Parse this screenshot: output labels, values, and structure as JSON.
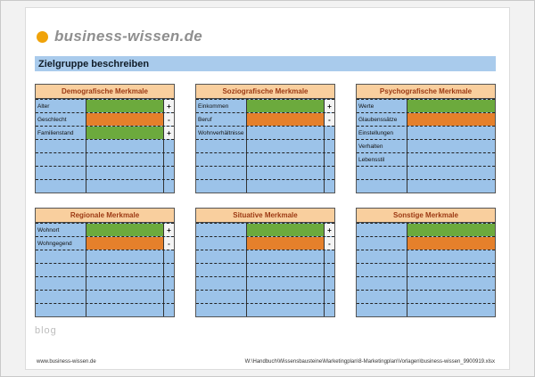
{
  "brand": {
    "name": "business-wissen.de"
  },
  "header": {
    "title": "Zielgruppe beschreiben"
  },
  "watermark": {
    "blog": "blog"
  },
  "footer": {
    "left": "www.business-wissen.de",
    "right": "W:\\Handbuch\\Wissensbausteine\\Marketingplan\\8-Marketingplan\\Vorlagen\\business-wissen_9900919.xlsx"
  },
  "colors": {
    "green": "#6caa3d",
    "orange": "#e5802b",
    "blue": "#9cc3e9",
    "header_bg": "#f9cf9e",
    "header_text": "#9c3913",
    "title_bar": "#a9cbec",
    "logo_dot": "#f0a30a"
  },
  "panels": [
    {
      "title": "Demografische Merkmale",
      "has_sign_col": true,
      "rows": [
        {
          "label": "Alter",
          "value_color": "green",
          "sign": "+"
        },
        {
          "label": "Geschlecht",
          "value_color": "orange",
          "sign": "-"
        },
        {
          "label": "Familienstand",
          "value_color": "green",
          "sign": "+"
        },
        {
          "label": "",
          "value_color": "blue",
          "sign": ""
        },
        {
          "label": "",
          "value_color": "blue",
          "sign": ""
        },
        {
          "label": "",
          "value_color": "blue",
          "sign": ""
        },
        {
          "label": "",
          "value_color": "blue",
          "sign": ""
        }
      ]
    },
    {
      "title": "Soziografische Merkmale",
      "has_sign_col": true,
      "rows": [
        {
          "label": "Einkommen",
          "value_color": "green",
          "sign": "+"
        },
        {
          "label": "Beruf",
          "value_color": "orange",
          "sign": "-"
        },
        {
          "label": "Wohnverhältnisse",
          "value_color": "blue",
          "sign": ""
        },
        {
          "label": "",
          "value_color": "blue",
          "sign": ""
        },
        {
          "label": "",
          "value_color": "blue",
          "sign": ""
        },
        {
          "label": "",
          "value_color": "blue",
          "sign": ""
        },
        {
          "label": "",
          "value_color": "blue",
          "sign": ""
        }
      ]
    },
    {
      "title": "Psychografische Merkmale",
      "has_sign_col": false,
      "rows": [
        {
          "label": "Werte",
          "value_color": "green",
          "sign": ""
        },
        {
          "label": "Glaubenssätze",
          "value_color": "orange",
          "sign": ""
        },
        {
          "label": "Einstellungen",
          "value_color": "blue",
          "sign": ""
        },
        {
          "label": "Verhalten",
          "value_color": "blue",
          "sign": ""
        },
        {
          "label": "Lebensstil",
          "value_color": "blue",
          "sign": ""
        },
        {
          "label": "",
          "value_color": "blue",
          "sign": ""
        },
        {
          "label": "",
          "value_color": "blue",
          "sign": ""
        }
      ]
    },
    {
      "title": "Regionale Merkmale",
      "has_sign_col": true,
      "rows": [
        {
          "label": "Wohnort",
          "value_color": "green",
          "sign": "+"
        },
        {
          "label": "Wohngegend",
          "value_color": "orange",
          "sign": "-"
        },
        {
          "label": "",
          "value_color": "blue",
          "sign": ""
        },
        {
          "label": "",
          "value_color": "blue",
          "sign": ""
        },
        {
          "label": "",
          "value_color": "blue",
          "sign": ""
        },
        {
          "label": "",
          "value_color": "blue",
          "sign": ""
        },
        {
          "label": "",
          "value_color": "blue",
          "sign": ""
        }
      ]
    },
    {
      "title": "Situative Merkmale",
      "has_sign_col": true,
      "rows": [
        {
          "label": "",
          "value_color": "green",
          "sign": "+"
        },
        {
          "label": "",
          "value_color": "orange",
          "sign": "-"
        },
        {
          "label": "",
          "value_color": "blue",
          "sign": ""
        },
        {
          "label": "",
          "value_color": "blue",
          "sign": ""
        },
        {
          "label": "",
          "value_color": "blue",
          "sign": ""
        },
        {
          "label": "",
          "value_color": "blue",
          "sign": ""
        },
        {
          "label": "",
          "value_color": "blue",
          "sign": ""
        }
      ]
    },
    {
      "title": "Sonstige Merkmale",
      "has_sign_col": false,
      "rows": [
        {
          "label": "",
          "value_color": "green",
          "sign": ""
        },
        {
          "label": "",
          "value_color": "orange",
          "sign": ""
        },
        {
          "label": "",
          "value_color": "blue",
          "sign": ""
        },
        {
          "label": "",
          "value_color": "blue",
          "sign": ""
        },
        {
          "label": "",
          "value_color": "blue",
          "sign": ""
        },
        {
          "label": "",
          "value_color": "blue",
          "sign": ""
        },
        {
          "label": "",
          "value_color": "blue",
          "sign": ""
        }
      ]
    }
  ]
}
